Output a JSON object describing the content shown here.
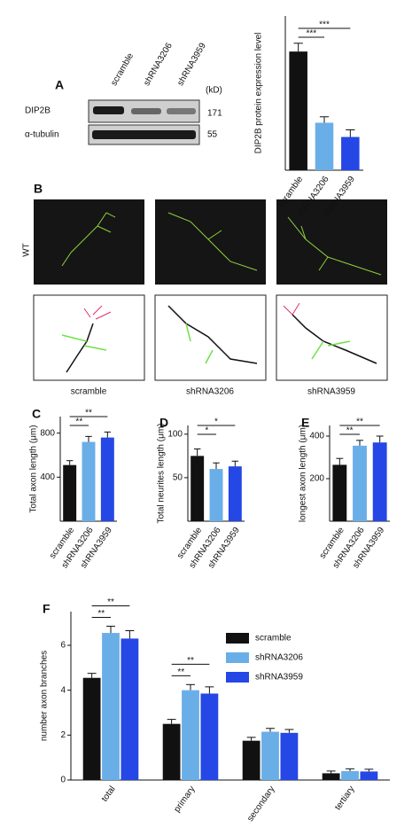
{
  "blot": {
    "label": "A",
    "lanes": [
      "scramble",
      "shRNA3206",
      "shRNA3959"
    ],
    "unit": "(kD)",
    "rows": [
      {
        "name": "DIP2B",
        "size": 171
      },
      {
        "name": "α-tubulin",
        "size": 55
      }
    ]
  },
  "images": {
    "label": "B",
    "row_label": "WT",
    "conditions": [
      "scramble",
      "shRNA3206",
      "shRNA3959"
    ]
  },
  "chart_data": [
    {
      "type": "bar",
      "ylabel": "DIP2B protein expression level",
      "categories": [
        "scramble",
        "shRNA3206",
        "shRNA3959"
      ],
      "values": [
        1.0,
        0.4,
        0.28
      ],
      "errors": [
        0.07,
        0.05,
        0.06
      ],
      "colors": [
        "#111111",
        "#6aaee8",
        "#2447e6"
      ],
      "ylim": [
        0,
        1.3
      ],
      "significance": [
        "***",
        "***"
      ]
    },
    {
      "type": "bar",
      "label": "C",
      "ylabel": "Total axon length (μm)",
      "categories": [
        "scramble",
        "shRNA3206",
        "shRNA3959"
      ],
      "values": [
        510,
        720,
        760
      ],
      "errors": [
        40,
        50,
        50
      ],
      "colors": [
        "#111111",
        "#6aaee8",
        "#2447e6"
      ],
      "ylim": [
        0,
        950
      ],
      "yticks": [
        400,
        800
      ],
      "significance": [
        "**",
        "**"
      ]
    },
    {
      "type": "bar",
      "label": "D",
      "ylabel": "Total neurites length (μm)",
      "categories": [
        "scramble",
        "shRNA3206",
        "shRNA3959"
      ],
      "values": [
        75,
        60,
        63
      ],
      "errors": [
        8,
        7,
        6
      ],
      "colors": [
        "#111111",
        "#6aaee8",
        "#2447e6"
      ],
      "ylim": [
        0,
        110
      ],
      "yticks": [
        50,
        100
      ],
      "significance": [
        "*",
        "*"
      ]
    },
    {
      "type": "bar",
      "label": "E",
      "ylabel": "longest axon length (μm)",
      "categories": [
        "scramble",
        "shRNA3206",
        "shRNA3959"
      ],
      "values": [
        265,
        355,
        370
      ],
      "errors": [
        30,
        25,
        30
      ],
      "colors": [
        "#111111",
        "#6aaee8",
        "#2447e6"
      ],
      "ylim": [
        0,
        450
      ],
      "yticks": [
        200,
        400
      ],
      "significance": [
        "**",
        "**"
      ]
    },
    {
      "type": "grouped_bar",
      "label": "F",
      "ylabel": "number axon branches",
      "categories": [
        "total",
        "primary",
        "secondary",
        "tertiary"
      ],
      "series": [
        {
          "name": "scramble",
          "color": "#111111",
          "values": [
            4.55,
            2.5,
            1.75,
            0.3
          ],
          "errors": [
            0.2,
            0.2,
            0.15,
            0.1
          ]
        },
        {
          "name": "shRNA3206",
          "color": "#6aaee8",
          "values": [
            6.55,
            4.0,
            2.15,
            0.4
          ],
          "errors": [
            0.3,
            0.25,
            0.15,
            0.1
          ]
        },
        {
          "name": "shRNA3959",
          "color": "#2447e6",
          "values": [
            6.3,
            3.85,
            2.1,
            0.38
          ],
          "errors": [
            0.35,
            0.3,
            0.15,
            0.1
          ]
        }
      ],
      "ylim": [
        0,
        7.5
      ],
      "yticks": [
        0,
        2,
        4,
        6
      ],
      "significance": [
        {
          "category": "total",
          "labels": [
            "**",
            "**"
          ]
        },
        {
          "category": "primary",
          "labels": [
            "**",
            "**"
          ]
        }
      ]
    }
  ]
}
